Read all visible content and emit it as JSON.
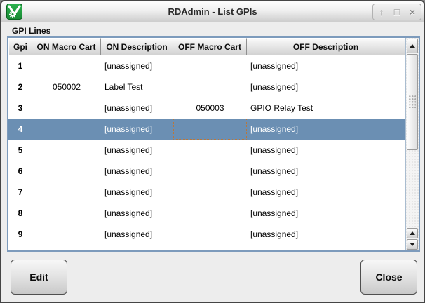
{
  "window": {
    "title": "RDAdmin - List GPIs",
    "controls": [
      {
        "name": "shade",
        "glyph": "↑"
      },
      {
        "name": "maximize",
        "glyph": "□"
      },
      {
        "name": "close",
        "glyph": "×"
      }
    ]
  },
  "page": {
    "section_label": "GPI Lines"
  },
  "table": {
    "columns": [
      {
        "key": "gpi",
        "label": "Gpi"
      },
      {
        "key": "on_cart",
        "label": "ON Macro Cart"
      },
      {
        "key": "on_desc",
        "label": "ON Description"
      },
      {
        "key": "off_cart",
        "label": "OFF Macro Cart"
      },
      {
        "key": "off_desc",
        "label": "OFF Description"
      }
    ],
    "rows": [
      {
        "gpi": "1",
        "on_cart": "",
        "on_desc": "[unassigned]",
        "off_cart": "",
        "off_desc": "[unassigned]",
        "selected": false,
        "focus_cell": null
      },
      {
        "gpi": "2",
        "on_cart": "050002",
        "on_desc": "Label Test",
        "off_cart": "",
        "off_desc": "[unassigned]",
        "selected": false,
        "focus_cell": null
      },
      {
        "gpi": "3",
        "on_cart": "",
        "on_desc": "[unassigned]",
        "off_cart": "050003",
        "off_desc": "GPIO Relay Test",
        "selected": false,
        "focus_cell": null
      },
      {
        "gpi": "4",
        "on_cart": "",
        "on_desc": "[unassigned]",
        "off_cart": "",
        "off_desc": "[unassigned]",
        "selected": true,
        "focus_cell": "off_cart"
      },
      {
        "gpi": "5",
        "on_cart": "",
        "on_desc": "[unassigned]",
        "off_cart": "",
        "off_desc": "[unassigned]",
        "selected": false,
        "focus_cell": null
      },
      {
        "gpi": "6",
        "on_cart": "",
        "on_desc": "[unassigned]",
        "off_cart": "",
        "off_desc": "[unassigned]",
        "selected": false,
        "focus_cell": null
      },
      {
        "gpi": "7",
        "on_cart": "",
        "on_desc": "[unassigned]",
        "off_cart": "",
        "off_desc": "[unassigned]",
        "selected": false,
        "focus_cell": null
      },
      {
        "gpi": "8",
        "on_cart": "",
        "on_desc": "[unassigned]",
        "off_cart": "",
        "off_desc": "[unassigned]",
        "selected": false,
        "focus_cell": null
      },
      {
        "gpi": "9",
        "on_cart": "",
        "on_desc": "[unassigned]",
        "off_cart": "",
        "off_desc": "[unassigned]",
        "selected": false,
        "focus_cell": null
      }
    ]
  },
  "buttons": {
    "edit": "Edit",
    "close": "Close"
  },
  "colors": {
    "selection": "#6b8fb3",
    "table_border": "#7d9bbc",
    "focus_outline": "#b9773b",
    "logo_green": "#1da03c"
  }
}
